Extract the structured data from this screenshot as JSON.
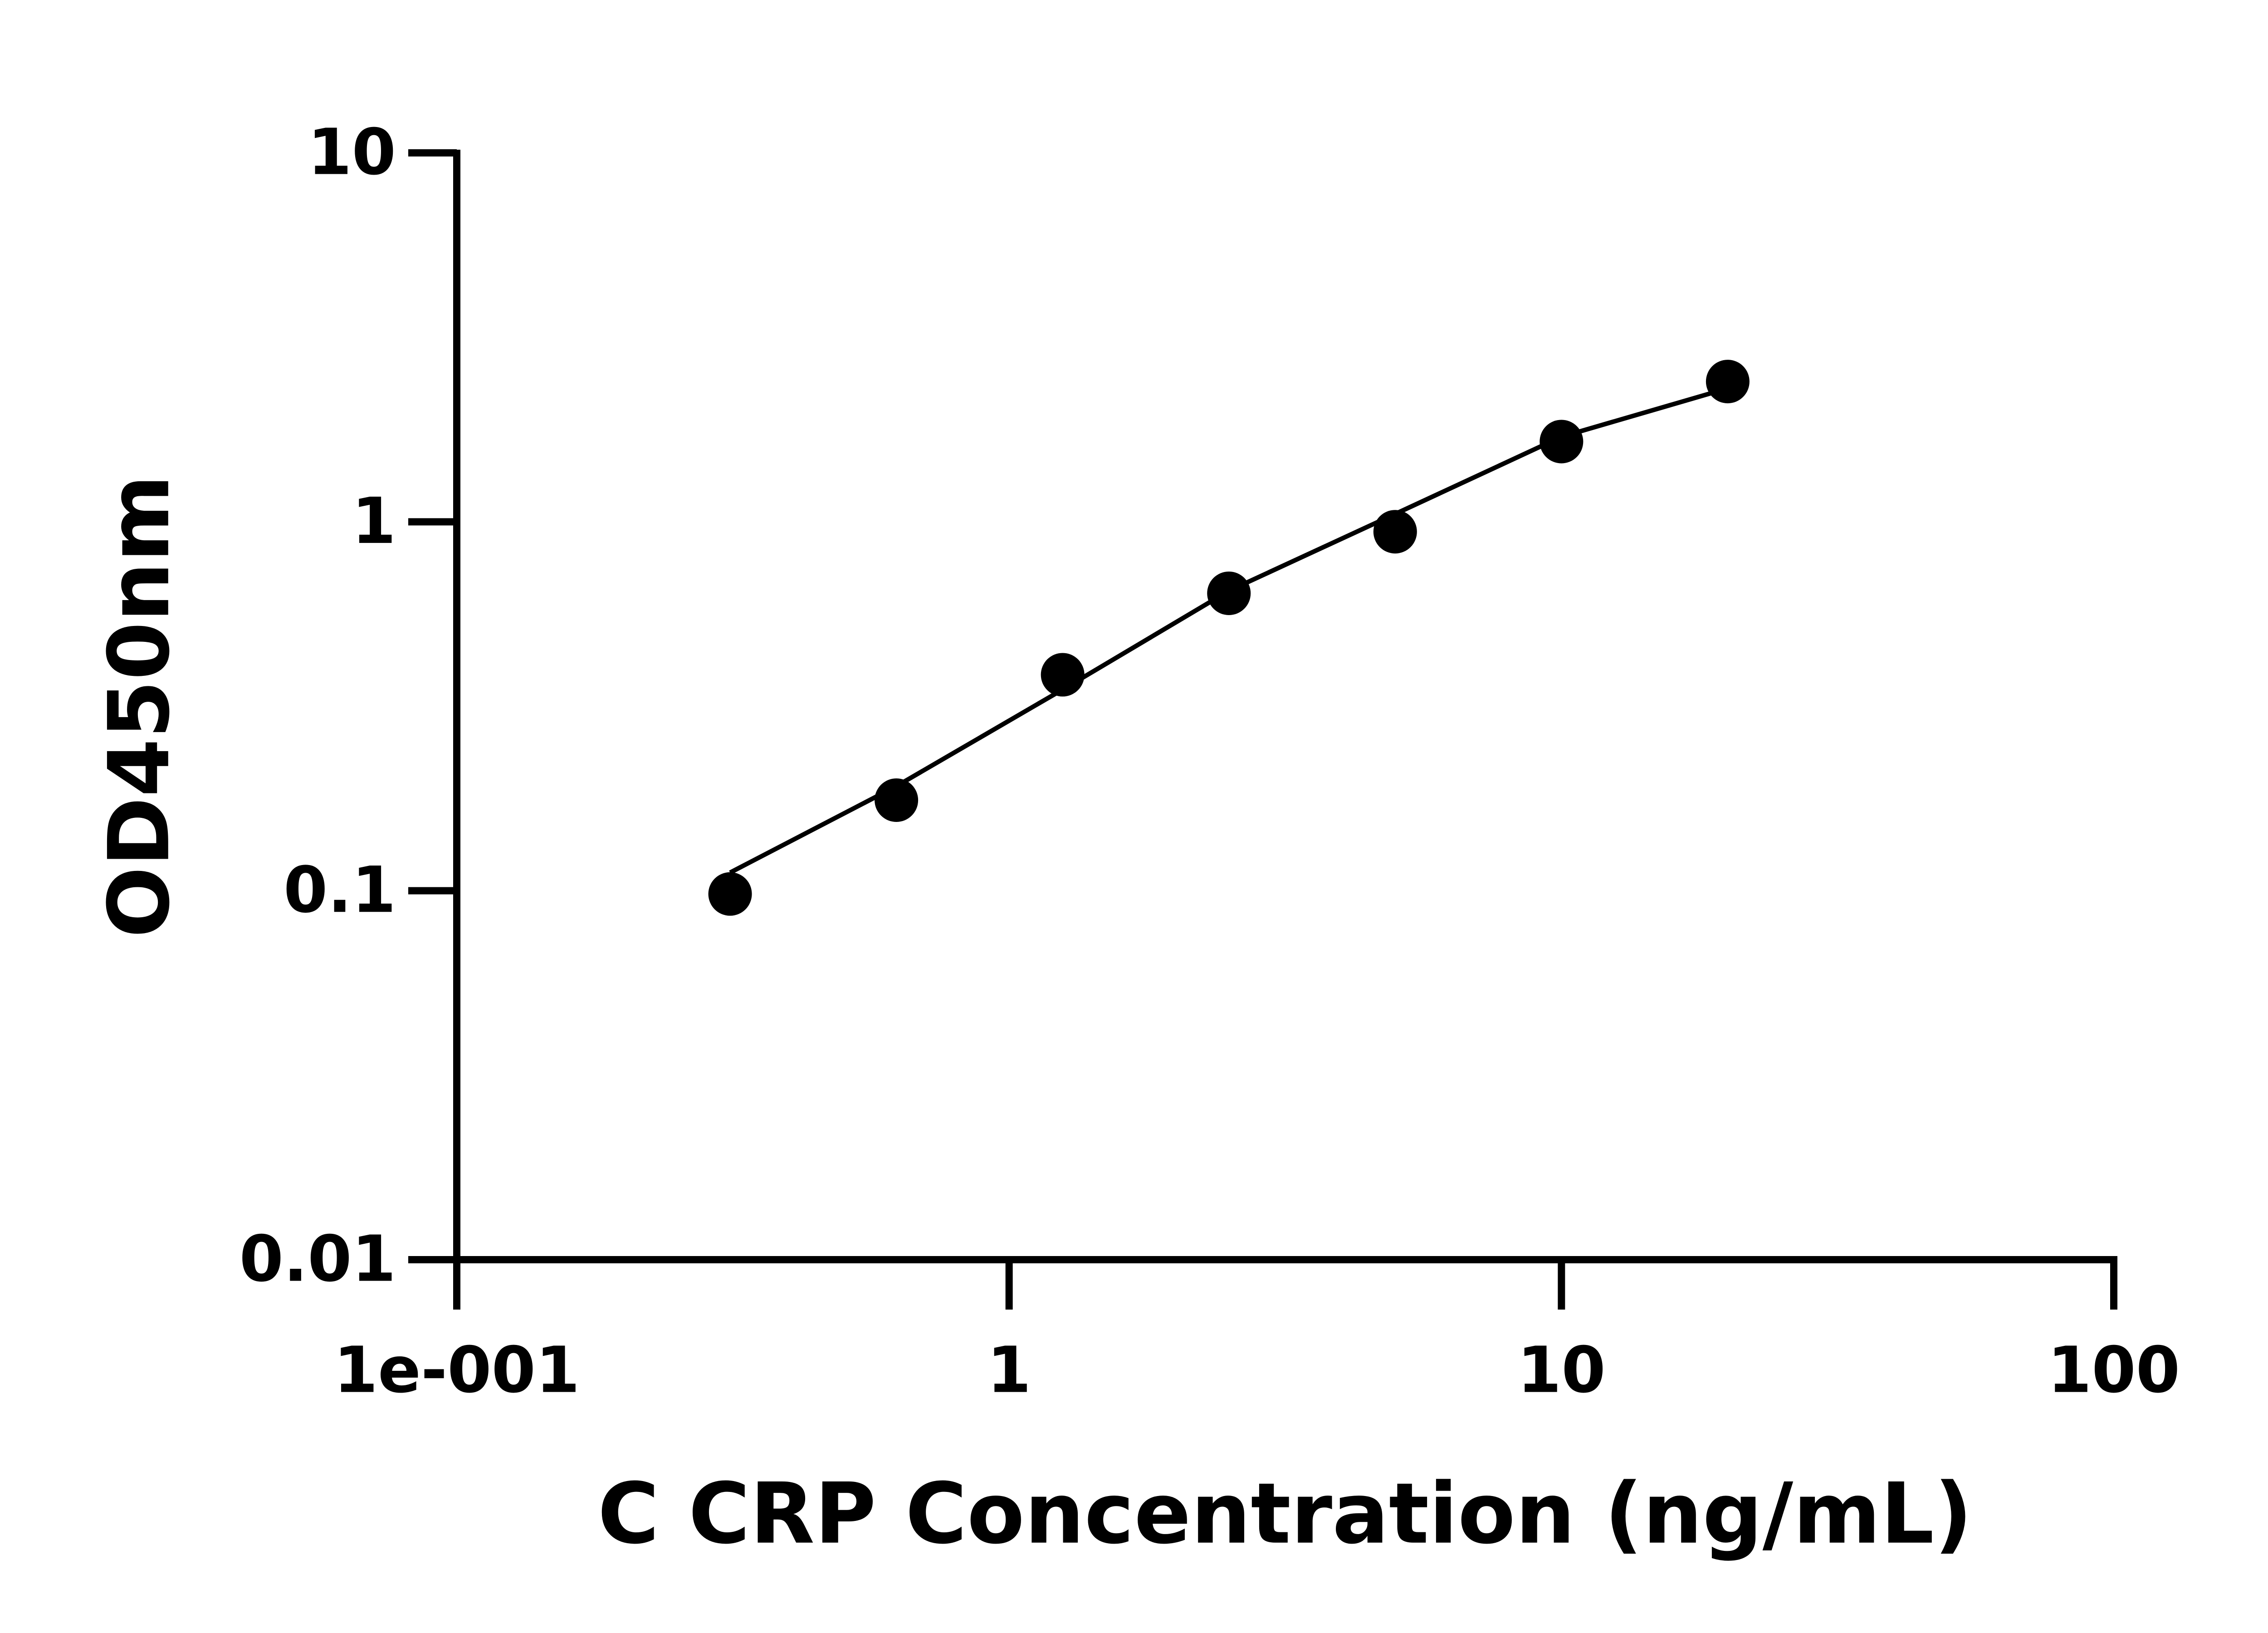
{
  "chart_data": {
    "type": "scatter",
    "xlabel": "C CRP Concentration (ng/mL)",
    "ylabel": "OD450nm",
    "xscale": "log",
    "yscale": "log",
    "x": [
      0.3125,
      0.625,
      1.25,
      2.5,
      5,
      10,
      20
    ],
    "series": [
      {
        "color": "#000000",
        "marker": "circle",
        "values": [
          0.098,
          0.176,
          0.385,
          0.64,
          0.94,
          1.65,
          2.4
        ]
      },
      {
        "color": "#000000",
        "marker": "line",
        "values": [
          0.112,
          0.192,
          0.351,
          0.65,
          1.05,
          1.7,
          2.3
        ]
      }
    ],
    "xlim": [
      0.1,
      100
    ],
    "xticks": [
      {
        "value": 0.1,
        "label": "1e-001"
      },
      1,
      10,
      100
    ],
    "ylim": [
      0.01,
      10
    ],
    "yticks": [
      0.01,
      0.1,
      1,
      10
    ]
  }
}
